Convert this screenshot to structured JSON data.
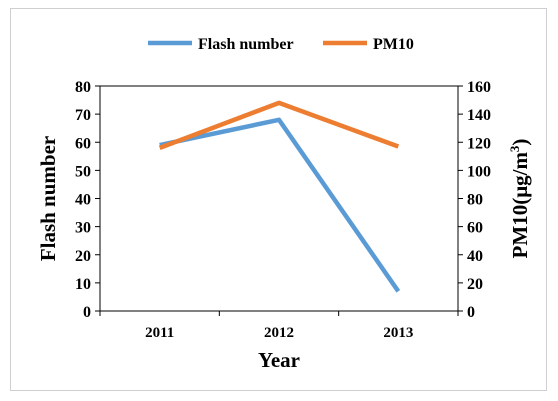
{
  "chart_data": {
    "type": "line",
    "categories": [
      "2011",
      "2012",
      "2013"
    ],
    "xlabel": "Year",
    "ylabel_left": "Flash number",
    "ylabel_right_prefix": "PM10(μg/m",
    "ylabel_right_sup": "3",
    "ylabel_right_suffix": ")",
    "ylim_left": [
      0,
      80
    ],
    "ylim_right": [
      0,
      160
    ],
    "yticks_left": [
      "0",
      "10",
      "20",
      "30",
      "40",
      "50",
      "60",
      "70",
      "80"
    ],
    "yticks_right": [
      "0",
      "20",
      "40",
      "60",
      "80",
      "100",
      "120",
      "140",
      "160"
    ],
    "legend_position": "top-center",
    "grid": false,
    "series": [
      {
        "name": "Flash number",
        "axis": "left",
        "color": "#5b9bd5",
        "values": [
          59,
          68,
          7
        ]
      },
      {
        "name": "PM10",
        "axis": "right",
        "color": "#ed7d31",
        "values": [
          116,
          148,
          117
        ]
      }
    ]
  }
}
